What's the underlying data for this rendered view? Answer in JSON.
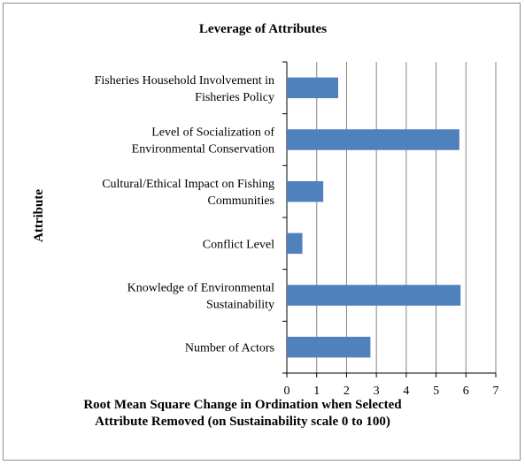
{
  "chart_data": {
    "type": "bar",
    "orientation": "horizontal",
    "title": "Leverage of Attributes",
    "ylabel": "Attribute",
    "xlabel": [
      "Root Mean Square Change in Ordination when Selected",
      "Attribute Removed (on Sustainability scale 0 to 100)"
    ],
    "categories": [
      [
        "Fisheries Household Involvement in",
        "Fisheries Policy"
      ],
      [
        "Level of Socialization of",
        "Environmental Conservation"
      ],
      [
        "Cultural/Ethical Impact on Fishing",
        "Communities"
      ],
      [
        "Conflict Level"
      ],
      [
        "Knowledge of Environmental",
        "Sustainability"
      ],
      [
        "Number of Actors"
      ]
    ],
    "values": [
      1.72,
      5.78,
      1.22,
      0.52,
      5.82,
      2.8
    ],
    "xlim": [
      0,
      7
    ],
    "xticks": [
      0,
      1,
      2,
      3,
      4,
      5,
      6,
      7
    ],
    "grid": true,
    "bar_color": "#4f81bd",
    "grid_color": "#868686"
  }
}
